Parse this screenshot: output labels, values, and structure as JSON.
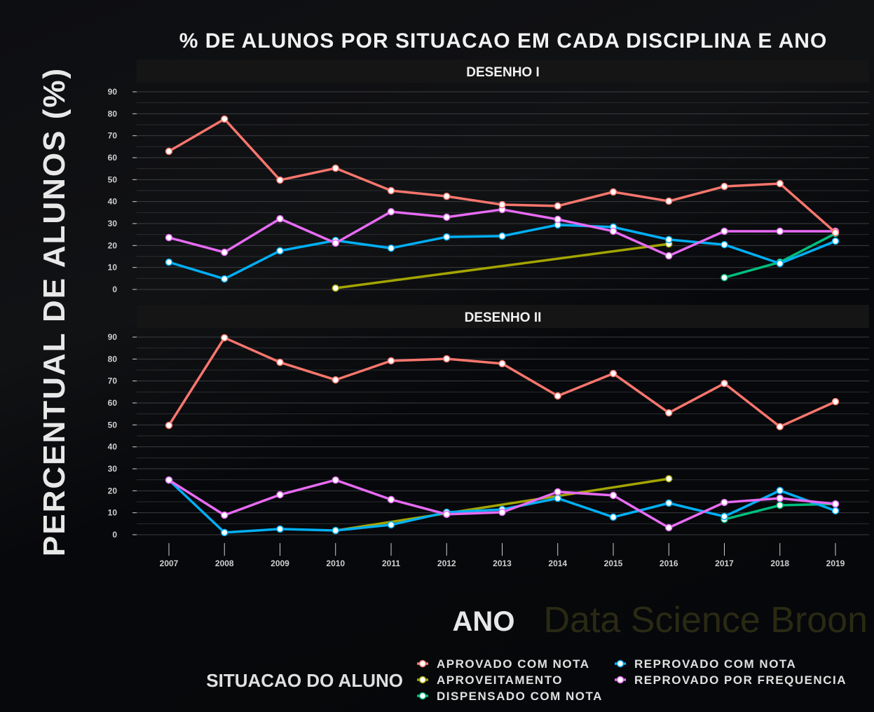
{
  "chart_data": {
    "type": "line",
    "title": "% DE ALUNOS POR SITUACAO EM CADA DISCIPLINA E ANO",
    "xlabel": "ANO",
    "ylabel": "PERCENTUAL DE ALUNOS (%)",
    "ylim": [
      0,
      90
    ],
    "yticks": [
      0,
      10,
      20,
      30,
      40,
      50,
      60,
      70,
      80,
      90
    ],
    "x": [
      2007,
      2008,
      2009,
      2010,
      2011,
      2012,
      2013,
      2014,
      2015,
      2016,
      2017,
      2018,
      2019
    ],
    "grid": true,
    "legend": {
      "title": "SITUACAO DO ALUNO",
      "placement": "bottom"
    },
    "watermark": "Data Science Broon",
    "colors": {
      "APROVADO COM NOTA": "#f8766d",
      "APROVEITAMENTO": "#a3a500",
      "DISPENSADO COM NOTA": "#00bf7d",
      "REPROVADO COM NOTA": "#00b0f6",
      "REPROVADO POR FREQUENCIA": "#e76bf3"
    },
    "legend_order": [
      "APROVADO COM NOTA",
      "APROVEITAMENTO",
      "DISPENSADO COM NOTA",
      "REPROVADO COM NOTA",
      "REPROVADO POR FREQUENCIA"
    ],
    "panels": [
      {
        "name": "DESENHO I",
        "series": [
          {
            "name": "APROVEITAMENTO",
            "points": [
              [
                2010,
                0.6
              ],
              [
                2016,
                20.7
              ]
            ]
          },
          {
            "name": "DISPENSADO COM NOTA",
            "points": [
              [
                2017,
                5.4
              ],
              [
                2018,
                12.4
              ],
              [
                2019,
                25.5
              ]
            ]
          },
          {
            "name": "REPROVADO COM NOTA",
            "points": [
              [
                2007,
                12.4
              ],
              [
                2008,
                4.8
              ],
              [
                2009,
                17.6
              ],
              [
                2010,
                22.3
              ],
              [
                2011,
                18.8
              ],
              [
                2012,
                23.9
              ],
              [
                2013,
                24.3
              ],
              [
                2014,
                29.4
              ],
              [
                2015,
                28.4
              ],
              [
                2016,
                22.7
              ],
              [
                2017,
                20.4
              ],
              [
                2018,
                11.8
              ],
              [
                2019,
                22.0
              ]
            ]
          },
          {
            "name": "REPROVADO POR FREQUENCIA",
            "points": [
              [
                2007,
                23.6
              ],
              [
                2008,
                16.9
              ],
              [
                2009,
                32.2
              ],
              [
                2010,
                21.1
              ],
              [
                2011,
                35.4
              ],
              [
                2012,
                32.9
              ],
              [
                2013,
                36.4
              ],
              [
                2014,
                31.9
              ],
              [
                2015,
                26.5
              ],
              [
                2016,
                15.3
              ],
              [
                2017,
                26.5
              ],
              [
                2018,
                26.5
              ],
              [
                2019,
                26.5
              ]
            ]
          },
          {
            "name": "APROVADO COM NOTA",
            "points": [
              [
                2007,
                62.9
              ],
              [
                2008,
                77.6
              ],
              [
                2009,
                49.8
              ],
              [
                2010,
                55.2
              ],
              [
                2011,
                45.0
              ],
              [
                2012,
                42.4
              ],
              [
                2013,
                38.6
              ],
              [
                2014,
                38.0
              ],
              [
                2015,
                44.4
              ],
              [
                2016,
                40.2
              ],
              [
                2017,
                46.9
              ],
              [
                2018,
                48.2
              ],
              [
                2019,
                25.9
              ]
            ]
          }
        ]
      },
      {
        "name": "DESENHO II",
        "series": [
          {
            "name": "APROVEITAMENTO",
            "points": [
              [
                2010,
                1.9
              ],
              [
                2016,
                25.5
              ]
            ]
          },
          {
            "name": "DISPENSADO COM NOTA",
            "points": [
              [
                2017,
                7.0
              ],
              [
                2018,
                13.4
              ],
              [
                2019,
                14.0
              ]
            ]
          },
          {
            "name": "REPROVADO COM NOTA",
            "points": [
              [
                2007,
                24.9
              ],
              [
                2008,
                1.0
              ],
              [
                2009,
                2.6
              ],
              [
                2010,
                1.9
              ],
              [
                2011,
                4.5
              ],
              [
                2012,
                10.2
              ],
              [
                2013,
                11.5
              ],
              [
                2014,
                16.6
              ],
              [
                2015,
                8.0
              ],
              [
                2016,
                14.4
              ],
              [
                2017,
                8.3
              ],
              [
                2018,
                20.1
              ],
              [
                2019,
                10.9
              ]
            ]
          },
          {
            "name": "REPROVADO POR FREQUENCIA",
            "points": [
              [
                2007,
                24.9
              ],
              [
                2008,
                8.9
              ],
              [
                2009,
                18.2
              ],
              [
                2010,
                24.9
              ],
              [
                2011,
                16.0
              ],
              [
                2012,
                9.3
              ],
              [
                2013,
                10.2
              ],
              [
                2014,
                19.5
              ],
              [
                2015,
                17.9
              ],
              [
                2016,
                3.2
              ],
              [
                2017,
                14.7
              ],
              [
                2018,
                16.6
              ],
              [
                2019,
                14.0
              ]
            ]
          },
          {
            "name": "APROVADO COM NOTA",
            "points": [
              [
                2007,
                49.8
              ],
              [
                2008,
                89.7
              ],
              [
                2009,
                78.5
              ],
              [
                2010,
                70.5
              ],
              [
                2011,
                79.2
              ],
              [
                2012,
                80.1
              ],
              [
                2013,
                77.9
              ],
              [
                2014,
                63.2
              ],
              [
                2015,
                73.4
              ],
              [
                2016,
                55.5
              ],
              [
                2017,
                68.9
              ],
              [
                2018,
                49.2
              ],
              [
                2019,
                60.6
              ]
            ]
          }
        ]
      }
    ]
  }
}
